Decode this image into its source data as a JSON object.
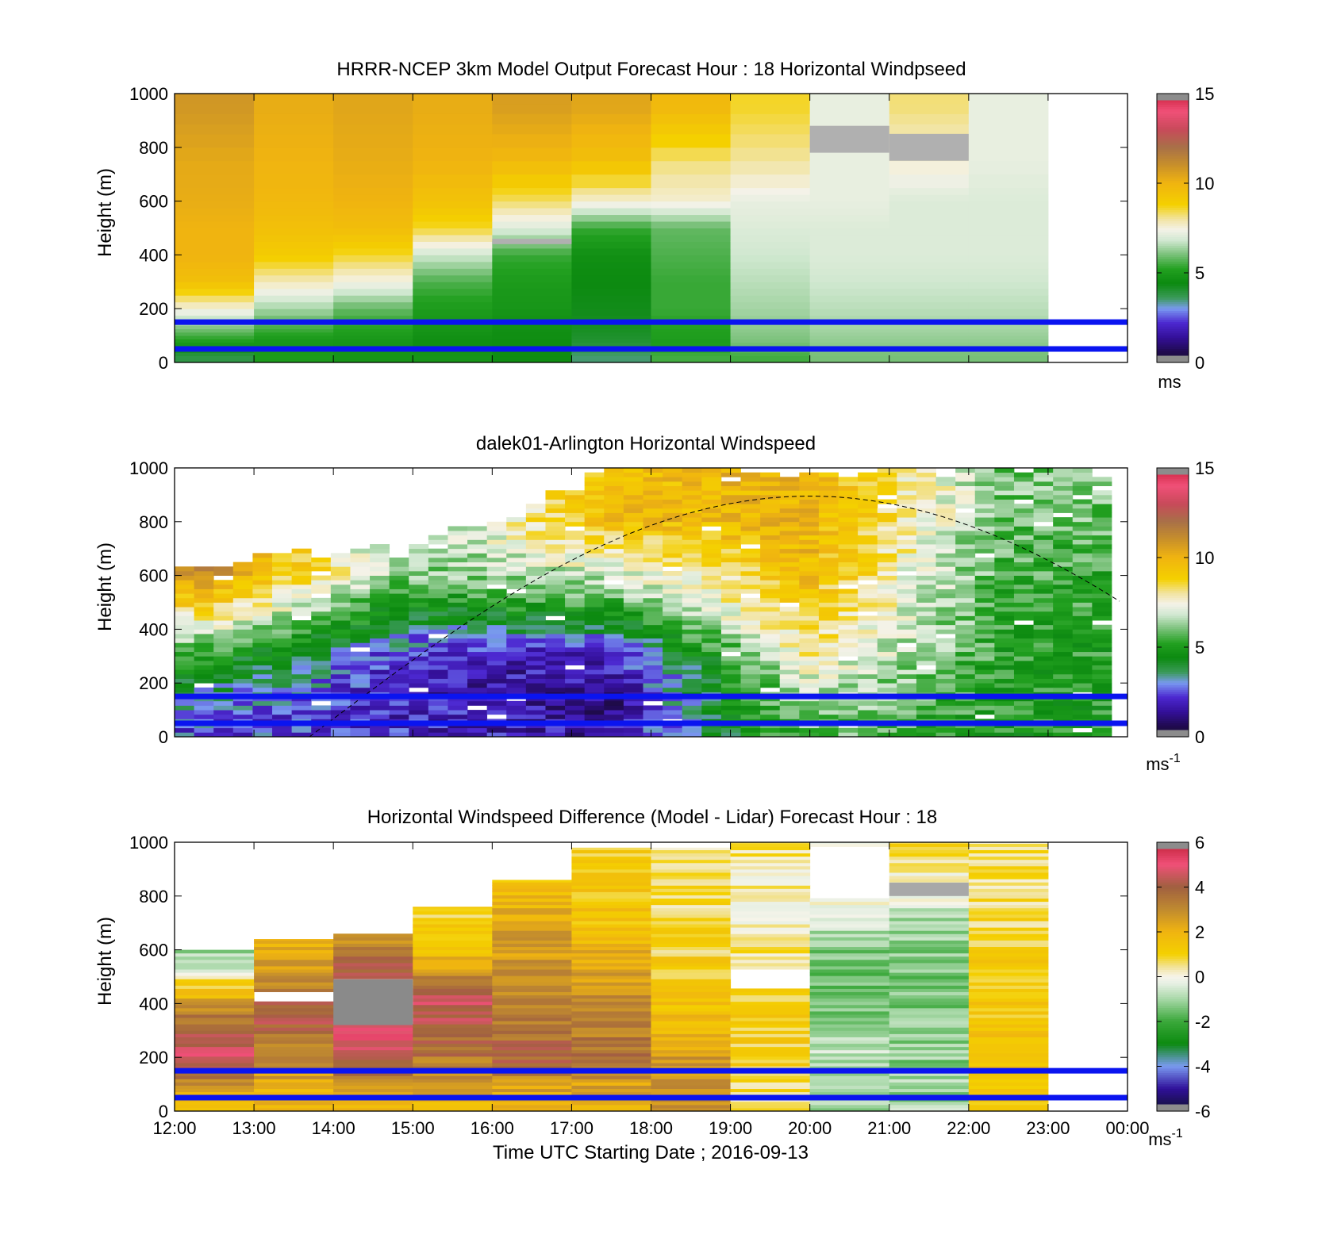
{
  "chart_data": [
    {
      "type": "heatmap",
      "title": "HRRR-NCEP 3km Model Output   Forecast Hour : 18 Horizontal Windpseed",
      "ylabel": "Height (m)",
      "ylim": [
        0,
        1000
      ],
      "yticks": [
        "0",
        "200",
        "400",
        "600",
        "800",
        "1000"
      ],
      "x_range": [
        "12:00",
        "00:00"
      ],
      "colorbar": {
        "min": 0,
        "max": 15,
        "ticks": [
          "0",
          "5",
          "10",
          "15"
        ],
        "unit": "ms",
        "unit_exp": "",
        "palette": "speed"
      },
      "reference_lines_m": [
        150,
        50
      ],
      "grid": "hourly",
      "rows_per_column": 10,
      "x": [
        "12:00",
        "13:00",
        "14:00",
        "15:00",
        "16:00",
        "17:00",
        "18:00",
        "19:00",
        "20:00",
        "21:00",
        "22:00"
      ],
      "height_levels_m": [
        25,
        75,
        125,
        200,
        300,
        400,
        500,
        600,
        750,
        950
      ],
      "values": [
        [
          3.8,
          5.0,
          6.0,
          7.5,
          9.5,
          10.0,
          10.0,
          10.2,
          10.3,
          10.8
        ],
        [
          5.0,
          4.8,
          5.5,
          6.4,
          7.8,
          9.0,
          9.5,
          9.8,
          10.0,
          10.2
        ],
        [
          4.8,
          4.8,
          5.2,
          5.8,
          7.4,
          8.6,
          9.6,
          10.0,
          10.2,
          10.4
        ],
        [
          4.8,
          4.5,
          4.8,
          5.0,
          5.6,
          6.8,
          8.6,
          9.4,
          10.0,
          10.2
        ],
        [
          4.5,
          4.5,
          4.6,
          4.8,
          5.0,
          5.4,
          7.0,
          8.3,
          9.8,
          10.6
        ],
        [
          3.5,
          4.0,
          4.2,
          4.3,
          4.4,
          4.6,
          5.4,
          7.6,
          9.5,
          10.4
        ],
        [
          5.5,
          5.0,
          5.2,
          5.4,
          5.4,
          5.6,
          5.8,
          7.6,
          8.2,
          9.8
        ],
        [
          5.5,
          6.0,
          6.2,
          6.4,
          6.6,
          6.8,
          7.0,
          7.2,
          8.0,
          8.6
        ],
        [
          6.0,
          6.2,
          6.4,
          6.6,
          6.8,
          7.0,
          7.0,
          7.2,
          7.2,
          7.2
        ],
        [
          6.0,
          6.2,
          6.4,
          6.6,
          6.8,
          7.0,
          7.0,
          7.0,
          7.6,
          8.2
        ],
        [
          6.0,
          6.2,
          6.4,
          6.6,
          6.8,
          7.0,
          7.0,
          7.0,
          7.2,
          7.2
        ]
      ]
    },
    {
      "type": "heatmap",
      "title": "dalek01-Arlington  Horizontal Windspeed",
      "ylabel": "Height (m)",
      "ylim": [
        0,
        1000
      ],
      "yticks": [
        "0",
        "200",
        "400",
        "600",
        "800",
        "1000"
      ],
      "x_range": [
        "12:00",
        "00:00"
      ],
      "colorbar": {
        "min": 0,
        "max": 15,
        "ticks": [
          "0",
          "5",
          "10",
          "15"
        ],
        "unit": "ms",
        "unit_exp": "-1",
        "palette": "speed"
      },
      "reference_lines_m": [
        150,
        50
      ],
      "grid": "fine",
      "columns": 48,
      "rows": 60,
      "overlay_curve": {
        "style": "dashed",
        "start_hour": 13.7,
        "peak_hour": 20.0,
        "peak_m": 895
      },
      "sample_profiles": [
        {
          "x": "12:30",
          "top_m": 660,
          "levels_m": [
            50,
            150,
            300,
            500,
            620
          ],
          "values": [
            2.5,
            3.2,
            5.0,
            9.0,
            11.0
          ]
        },
        {
          "x": "15:00",
          "top_m": 690,
          "levels_m": [
            50,
            150,
            300,
            450,
            600
          ],
          "values": [
            2.0,
            1.8,
            2.0,
            4.0,
            6.0
          ]
        },
        {
          "x": "17:30",
          "top_m": 1000,
          "levels_m": [
            50,
            150,
            300,
            500,
            800
          ],
          "values": [
            1.5,
            1.2,
            1.8,
            5.5,
            9.5
          ]
        },
        {
          "x": "20:00",
          "top_m": 1000,
          "levels_m": [
            50,
            200,
            400,
            600,
            900
          ],
          "values": [
            6.0,
            7.0,
            8.5,
            9.5,
            10.0
          ]
        },
        {
          "x": "22:30",
          "top_m": 1000,
          "levels_m": [
            50,
            200,
            400,
            600,
            900
          ],
          "values": [
            5.0,
            5.0,
            5.2,
            5.4,
            6.0
          ]
        }
      ]
    },
    {
      "type": "heatmap",
      "title": "Horizontal Windspeed Difference (Model - Lidar) Forecast Hour : 18",
      "xlabel": "Time UTC  Starting Date ; 2016-09-13",
      "ylabel": "Height (m)",
      "ylim": [
        0,
        1000
      ],
      "yticks": [
        "0",
        "200",
        "400",
        "600",
        "800",
        "1000"
      ],
      "xticks": [
        "12:00",
        "13:00",
        "14:00",
        "15:00",
        "16:00",
        "17:00",
        "18:00",
        "19:00",
        "20:00",
        "21:00",
        "22:00",
        "23:00",
        "00:00"
      ],
      "colorbar": {
        "min": -6,
        "max": 6,
        "ticks": [
          "-6",
          "-4",
          "-2",
          "0",
          "2",
          "4",
          "6"
        ],
        "unit": "ms",
        "unit_exp": "-1",
        "palette": "diff"
      },
      "reference_lines_m": [
        150,
        50
      ],
      "x": [
        "12:00",
        "13:00",
        "14:00",
        "15:00",
        "16:00",
        "17:00",
        "18:00",
        "19:00",
        "20:00",
        "21:00",
        "22:00"
      ],
      "column_tops_m": [
        600,
        640,
        660,
        760,
        860,
        980,
        980,
        1000,
        1000,
        1000,
        1000
      ],
      "gaps_m": [
        [],
        [
          [
            410,
            440
          ]
        ],
        [
          [
            320,
            490
          ]
        ],
        [],
        [],
        [],
        [],
        [
          [
            460,
            530
          ]
        ],
        [
          [
            790,
            980
          ]
        ],
        [],
        []
      ],
      "profiles": [
        {
          "levels_m": [
            50,
            200,
            350,
            450,
            550
          ],
          "values": [
            2.0,
            4.5,
            3.5,
            1.5,
            -1.0
          ]
        },
        {
          "levels_m": [
            50,
            200,
            350,
            500,
            620
          ],
          "values": [
            2.0,
            3.0,
            4.2,
            3.0,
            2.0
          ]
        },
        {
          "levels_m": [
            50,
            200,
            300,
            550,
            640
          ],
          "values": [
            2.0,
            4.5,
            4.8,
            4.0,
            3.0
          ]
        },
        {
          "levels_m": [
            50,
            200,
            400,
            600,
            740
          ],
          "values": [
            2.0,
            3.5,
            4.5,
            1.5,
            1.0
          ]
        },
        {
          "levels_m": [
            50,
            200,
            400,
            650,
            850
          ],
          "values": [
            2.0,
            4.0,
            3.0,
            2.5,
            1.5
          ]
        },
        {
          "levels_m": [
            50,
            200,
            400,
            700,
            960
          ],
          "values": [
            2.0,
            3.5,
            3.0,
            1.5,
            1.0
          ]
        },
        {
          "levels_m": [
            50,
            200,
            450,
            700,
            960
          ],
          "values": [
            3.0,
            2.5,
            1.2,
            0.8,
            0.5
          ]
        },
        {
          "levels_m": [
            50,
            200,
            450,
            750,
            990
          ],
          "values": [
            0.5,
            1.0,
            1.0,
            0.2,
            0.5
          ]
        },
        {
          "levels_m": [
            50,
            200,
            450,
            650,
            780
          ],
          "values": [
            -1.0,
            -0.8,
            -1.5,
            -1.2,
            0.2
          ]
        },
        {
          "levels_m": [
            50,
            200,
            450,
            700,
            990
          ],
          "values": [
            -1.0,
            -1.2,
            -1.5,
            -1.0,
            1.0
          ]
        },
        {
          "levels_m": [
            50,
            200,
            450,
            700,
            990
          ],
          "values": [
            1.5,
            1.5,
            1.2,
            0.8,
            0.5
          ]
        }
      ]
    }
  ]
}
